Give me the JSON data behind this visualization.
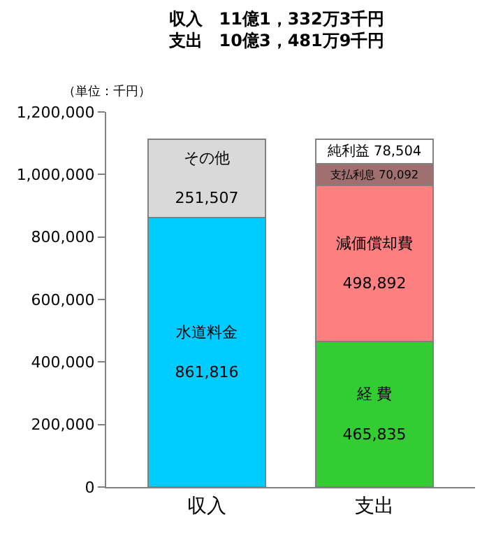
{
  "chart_data": {
    "type": "bar",
    "stacked": true,
    "title": "収入　11億1，332万3千円",
    "subtitle": "支出　10億3，481万9千円",
    "ylabel": "（単位：千円）",
    "categories": [
      "収入",
      "支出"
    ],
    "ylim": [
      0,
      1200000
    ],
    "yticks": [
      {
        "value": 0,
        "label": "0"
      },
      {
        "value": 200000,
        "label": "200,000"
      },
      {
        "value": 400000,
        "label": "400,000"
      },
      {
        "value": 600000,
        "label": "600,000"
      },
      {
        "value": 800000,
        "label": "800,000"
      },
      {
        "value": 1000000,
        "label": "1,000,000"
      },
      {
        "value": 1200000,
        "label": "1,200,000"
      }
    ],
    "series": [
      {
        "name": "水道料金",
        "color": "#00ccff",
        "values": [
          861816,
          null
        ],
        "value_labels": [
          "861,816",
          null
        ]
      },
      {
        "name": "経 費",
        "color": "#33cc33",
        "values": [
          null,
          465835
        ],
        "value_labels": [
          null,
          "465,835"
        ]
      },
      {
        "name": "その他",
        "color": "#d9d9d9",
        "values": [
          251507,
          null
        ],
        "value_labels": [
          "251,507",
          null
        ]
      },
      {
        "name": "減価償却費",
        "color": "#ff8080",
        "values": [
          null,
          498892
        ],
        "value_labels": [
          null,
          "498,892"
        ]
      },
      {
        "name": "支払利息",
        "color": "#a07070",
        "values": [
          null,
          70092
        ],
        "value_labels": [
          null,
          "70,092"
        ]
      },
      {
        "name": "純利益",
        "color": "#ffffff",
        "values": [
          null,
          78504
        ],
        "value_labels": [
          null,
          "78,504"
        ]
      }
    ]
  }
}
